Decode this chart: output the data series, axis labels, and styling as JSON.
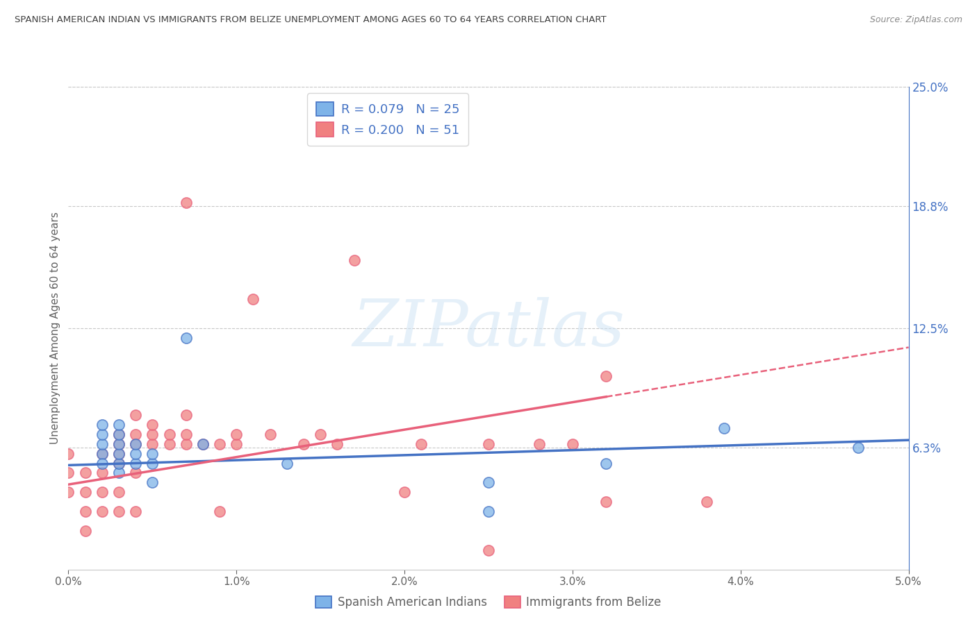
{
  "title": "SPANISH AMERICAN INDIAN VS IMMIGRANTS FROM BELIZE UNEMPLOYMENT AMONG AGES 60 TO 64 YEARS CORRELATION CHART",
  "source": "Source: ZipAtlas.com",
  "ylabel": "Unemployment Among Ages 60 to 64 years",
  "xlim": [
    0.0,
    0.05
  ],
  "ylim": [
    -0.01,
    0.26
  ],
  "plot_ylim": [
    0.0,
    0.25
  ],
  "xtick_labels": [
    "0.0%",
    "1.0%",
    "2.0%",
    "3.0%",
    "4.0%",
    "5.0%"
  ],
  "xtick_vals": [
    0.0,
    0.01,
    0.02,
    0.03,
    0.04,
    0.05
  ],
  "ytick_labels_right": [
    "6.3%",
    "12.5%",
    "18.8%",
    "25.0%"
  ],
  "ytick_vals_right": [
    0.063,
    0.125,
    0.188,
    0.25
  ],
  "legend_items": [
    {
      "label": "R = 0.079   N = 25",
      "color": "#7EB3E8"
    },
    {
      "label": "R = 0.200   N = 51",
      "color": "#F08080"
    }
  ],
  "blue_scatter_x": [
    0.002,
    0.002,
    0.002,
    0.002,
    0.002,
    0.003,
    0.003,
    0.003,
    0.003,
    0.003,
    0.003,
    0.004,
    0.004,
    0.004,
    0.005,
    0.005,
    0.005,
    0.007,
    0.008,
    0.013,
    0.025,
    0.025,
    0.032,
    0.039,
    0.047
  ],
  "blue_scatter_y": [
    0.06,
    0.065,
    0.07,
    0.075,
    0.055,
    0.05,
    0.055,
    0.06,
    0.065,
    0.07,
    0.075,
    0.055,
    0.06,
    0.065,
    0.045,
    0.055,
    0.06,
    0.12,
    0.065,
    0.055,
    0.045,
    0.03,
    0.055,
    0.073,
    0.063
  ],
  "pink_scatter_x": [
    0.0,
    0.0,
    0.0,
    0.001,
    0.001,
    0.001,
    0.001,
    0.002,
    0.002,
    0.002,
    0.002,
    0.003,
    0.003,
    0.003,
    0.003,
    0.003,
    0.003,
    0.004,
    0.004,
    0.004,
    0.004,
    0.004,
    0.005,
    0.005,
    0.005,
    0.006,
    0.006,
    0.007,
    0.007,
    0.007,
    0.007,
    0.008,
    0.009,
    0.009,
    0.01,
    0.01,
    0.011,
    0.012,
    0.014,
    0.015,
    0.016,
    0.017,
    0.02,
    0.021,
    0.025,
    0.025,
    0.028,
    0.03,
    0.032,
    0.032,
    0.038
  ],
  "pink_scatter_y": [
    0.04,
    0.05,
    0.06,
    0.02,
    0.03,
    0.04,
    0.05,
    0.03,
    0.04,
    0.05,
    0.06,
    0.03,
    0.04,
    0.055,
    0.06,
    0.065,
    0.07,
    0.03,
    0.05,
    0.065,
    0.07,
    0.08,
    0.065,
    0.07,
    0.075,
    0.065,
    0.07,
    0.065,
    0.07,
    0.08,
    0.19,
    0.065,
    0.03,
    0.065,
    0.065,
    0.07,
    0.14,
    0.07,
    0.065,
    0.07,
    0.065,
    0.16,
    0.04,
    0.065,
    0.01,
    0.065,
    0.065,
    0.065,
    0.1,
    0.035,
    0.035
  ],
  "blue_line_x": [
    0.0,
    0.05
  ],
  "blue_line_y": [
    0.054,
    0.067
  ],
  "pink_line_x": [
    0.0,
    0.05
  ],
  "pink_line_y": [
    0.044,
    0.115
  ],
  "pink_line_solid_end": 0.032,
  "blue_color": "#4472C4",
  "pink_color": "#E8607A",
  "blue_scatter_color": "#7EB3E8",
  "pink_scatter_color": "#F08080",
  "background_color": "#FFFFFF",
  "grid_color": "#C8C8C8",
  "title_color": "#404040",
  "axis_color": "#606060",
  "right_axis_color": "#4472C4",
  "watermark_text": "ZIPatlas",
  "scatter_size": 120,
  "bottom_legend_labels": [
    "Spanish American Indians",
    "Immigrants from Belize"
  ]
}
